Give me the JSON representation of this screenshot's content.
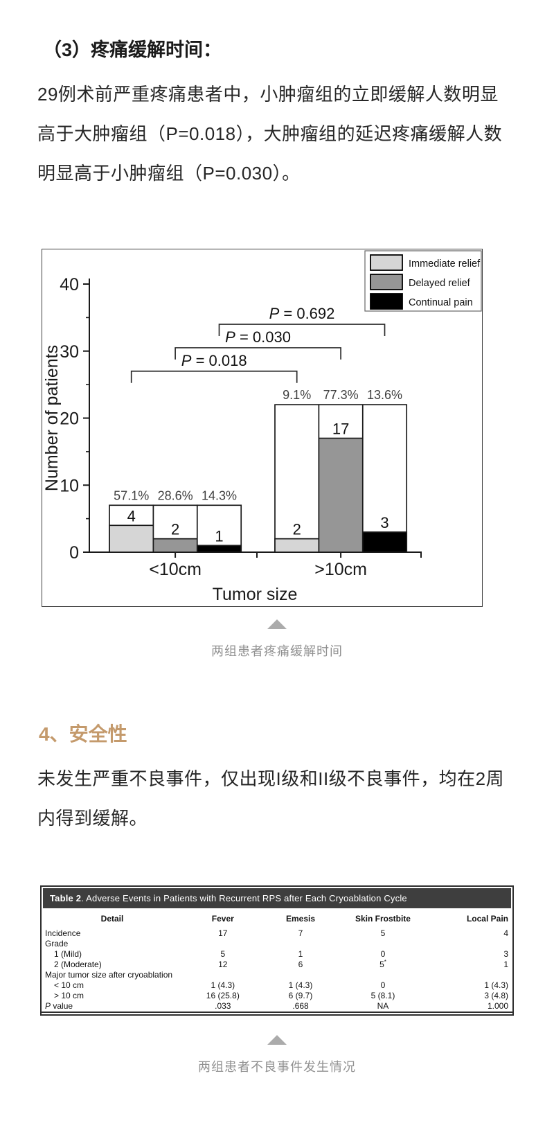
{
  "page": {
    "section_heading": "（3）疼痛缓解时间：",
    "paragraph1": "29例术前严重疼痛患者中，小肿瘤组的立即缓解人数明显高于大肿瘤组（P=0.018），大肿瘤组的延迟疼痛缓解人数明显高于小肿瘤组（P=0.030）。",
    "figure_caption": "两组患者疼痛缓解时间",
    "section_heading2": "4、安全性",
    "paragraph2": "未发生严重不良事件，仅出现I级和II级不良事件，均在2周内得到缓解。",
    "table_caption": "两组患者不良事件发生情况",
    "accent_color": "#C49A6C",
    "triangle_color": "#ababab"
  },
  "chart_data": {
    "type": "bar",
    "title": "",
    "xlabel": "Tumor size",
    "ylabel": "Number of patients",
    "ylim": [
      0,
      40
    ],
    "yticks": [
      0,
      10,
      20,
      30,
      40
    ],
    "grid": false,
    "legend_position": "top-right",
    "categories": [
      "<10cm",
      ">10cm"
    ],
    "group_totals": [
      7,
      22
    ],
    "series": [
      {
        "name": "Immediate relief",
        "color": "#d6d6d6",
        "values": [
          4,
          2
        ],
        "percents": [
          "57.1%",
          "9.1%"
        ]
      },
      {
        "name": "Delayed relief",
        "color": "#969696",
        "values": [
          2,
          17
        ],
        "percents": [
          "28.6%",
          "77.3%"
        ]
      },
      {
        "name": "Continual pain",
        "color": "#000000",
        "values": [
          1,
          3
        ],
        "percents": [
          "14.3%",
          "13.6%"
        ]
      }
    ],
    "brackets": [
      {
        "label": "P = 0.018",
        "series_index": 0,
        "y_value": 27
      },
      {
        "label": "P = 0.030",
        "series_index": 1,
        "y_value": 30.5
      },
      {
        "label": "P = 0.692",
        "series_index": 2,
        "y_value": 34
      }
    ]
  },
  "table": {
    "title_bold": "Table 2",
    "title_rest": ". Adverse Events in Patients with Recurrent RPS after Each Cryoablation Cycle",
    "header_bg": "#3E3E3E",
    "columns": [
      "Detail",
      "Fever",
      "Emesis",
      "Skin Frostbite",
      "Local Pain"
    ],
    "rows": [
      {
        "label": "Incidence",
        "indent": false,
        "italic_p": false,
        "values": [
          "17",
          "7",
          "5",
          "4"
        ]
      },
      {
        "label": "Grade",
        "indent": false,
        "italic_p": false,
        "values": [
          "",
          "",
          "",
          ""
        ]
      },
      {
        "label": "1 (Mild)",
        "indent": true,
        "italic_p": false,
        "values": [
          "5",
          "1",
          "0",
          "3"
        ]
      },
      {
        "label": "2 (Moderate)",
        "indent": true,
        "italic_p": false,
        "values": [
          "12",
          "6",
          "5*",
          "1"
        ]
      },
      {
        "label": "Major tumor size after cryoablation",
        "indent": false,
        "italic_p": false,
        "values": [
          "",
          "",
          "",
          ""
        ]
      },
      {
        "label": "< 10 cm",
        "indent": true,
        "italic_p": false,
        "values": [
          "1 (4.3)",
          "1 (4.3)",
          "0",
          "1 (4.3)"
        ]
      },
      {
        "label": "> 10 cm",
        "indent": true,
        "italic_p": false,
        "values": [
          "16 (25.8)",
          "6 (9.7)",
          "5 (8.1)",
          "3 (4.8)"
        ]
      },
      {
        "label": "P value",
        "indent": false,
        "italic_p": true,
        "values": [
          ".033",
          ".668",
          "NA",
          "1.000"
        ]
      }
    ]
  }
}
